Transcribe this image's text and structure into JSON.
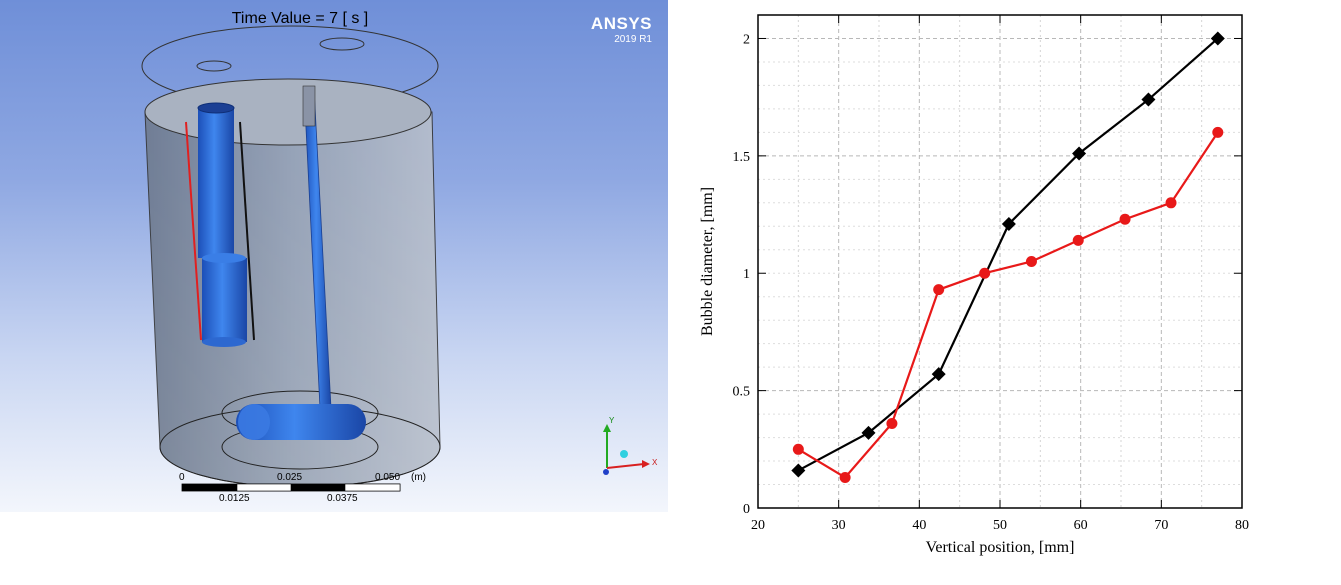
{
  "viewer": {
    "title": "Time Value = 7 [ s ]",
    "brand_name": "ANSYS",
    "brand_version": "2019 R1",
    "scale_top": [
      "0",
      "0.025",
      "0.050",
      "(m)"
    ],
    "scale_bottom": [
      "0.0125",
      "0.0375"
    ],
    "triad": {
      "y": "Y",
      "x": "X"
    }
  },
  "chart_data": {
    "type": "line",
    "xlabel": "Vertical position, [mm]",
    "ylabel": "Bubble diameter, [mm]",
    "xlim": [
      20,
      80
    ],
    "ylim": [
      0,
      2.1
    ],
    "xticks": [
      20,
      30,
      40,
      50,
      60,
      70,
      80
    ],
    "yticks": [
      0,
      0.5,
      1,
      1.5,
      2
    ],
    "ytick_labels": [
      "0",
      "0.5",
      "1",
      "1.5",
      "2"
    ],
    "grid": true,
    "series": [
      {
        "color": "#000000",
        "marker": "diamond",
        "x": [
          25,
          33.7,
          42.4,
          51.1,
          59.8,
          68.4,
          77
        ],
        "y": [
          0.16,
          0.32,
          0.57,
          1.21,
          1.51,
          1.74,
          2.0
        ]
      },
      {
        "color": "#e81919",
        "marker": "circle",
        "x": [
          25,
          30.8,
          36.6,
          42.4,
          48.1,
          53.9,
          59.7,
          65.5,
          71.2,
          77
        ],
        "y": [
          0.25,
          0.13,
          0.36,
          0.93,
          1.0,
          1.05,
          1.14,
          1.23,
          1.3,
          1.6
        ]
      }
    ]
  }
}
